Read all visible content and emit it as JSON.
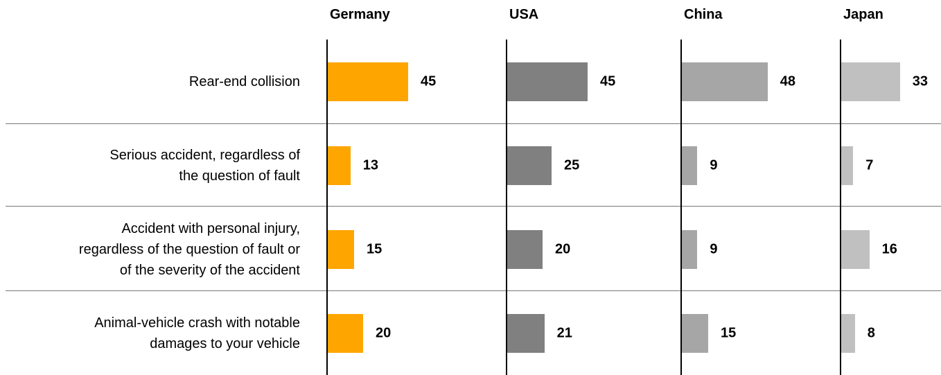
{
  "chart_data": {
    "type": "bar",
    "orientation": "horizontal",
    "categories": [
      "Rear-end collision",
      "Serious accident, regardless of\nthe question of fault",
      "Accident with personal injury,\nregardless of the question of fault or\nof the severity of the accident",
      "Animal-vehicle crash with notable\ndamages to your vehicle"
    ],
    "series": [
      {
        "name": "Germany",
        "color": "#ffa500",
        "values": [
          45,
          13,
          15,
          20
        ]
      },
      {
        "name": "USA",
        "color": "#808080",
        "values": [
          45,
          25,
          20,
          21
        ]
      },
      {
        "name": "China",
        "color": "#a6a6a6",
        "values": [
          48,
          9,
          9,
          15
        ]
      },
      {
        "name": "Japan",
        "color": "#c0c0c0",
        "values": [
          33,
          7,
          16,
          8
        ]
      }
    ]
  }
}
